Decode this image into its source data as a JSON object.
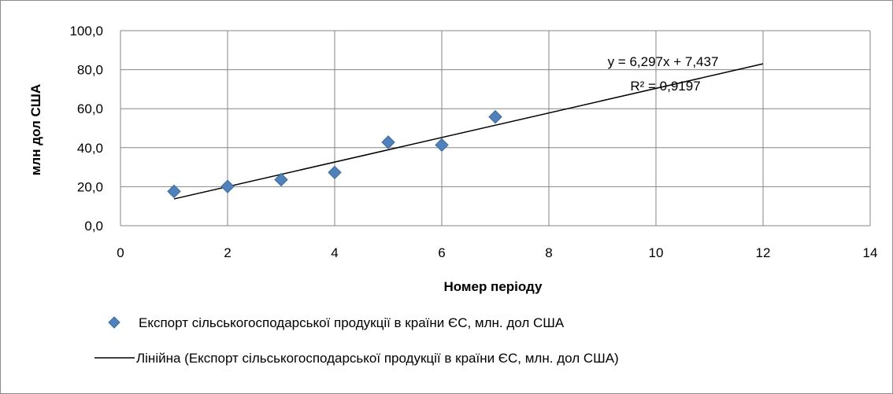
{
  "chart_data": {
    "type": "scatter",
    "xlabel": "Номер періоду",
    "ylabel": "млн дол США",
    "xlim": [
      0,
      14
    ],
    "ylim": [
      0,
      100
    ],
    "x_ticks": [
      "0",
      "2",
      "4",
      "6",
      "8",
      "10",
      "12",
      "14"
    ],
    "y_ticks": [
      "0,0",
      "20,0",
      "40,0",
      "60,0",
      "80,0",
      "100,0"
    ],
    "grid": true,
    "series": [
      {
        "name": "Експорт сільськогосподарської продукції в країни ЄС, млн. дол США",
        "type": "scatter",
        "color": "#4f81bd",
        "marker": "diamond",
        "points": [
          {
            "x": 1,
            "y": 17.6
          },
          {
            "x": 2,
            "y": 20.1
          },
          {
            "x": 3,
            "y": 23.6
          },
          {
            "x": 4,
            "y": 27.3
          },
          {
            "x": 5,
            "y": 42.8
          },
          {
            "x": 6,
            "y": 41.4
          },
          {
            "x": 7,
            "y": 55.8
          }
        ]
      }
    ],
    "trendline": {
      "name": "Лінійна (Експорт сільськогосподарської продукції в країни ЄС, млн. дол США)",
      "type": "linear",
      "slope": 6.297,
      "intercept": 7.437,
      "x_range": [
        1,
        12
      ],
      "color": "#000000",
      "equation": "y = 6,297x + 7,437",
      "r_squared": "R² = 0,9197"
    },
    "legend": "bottom"
  }
}
